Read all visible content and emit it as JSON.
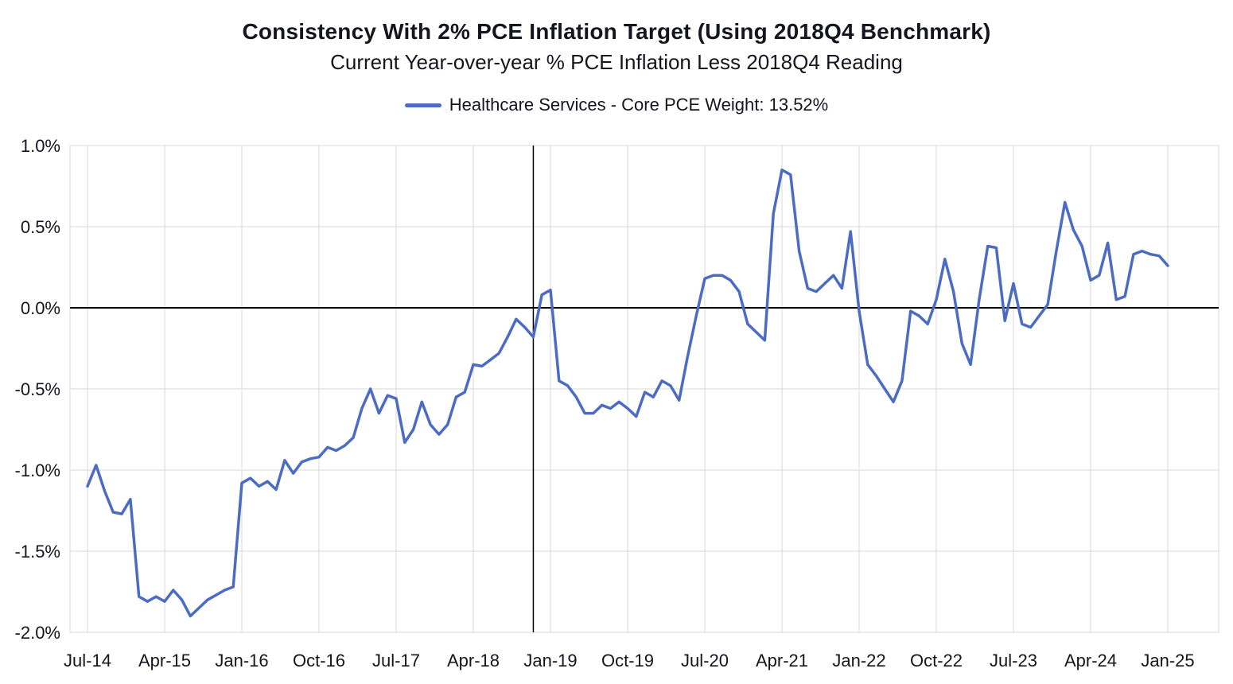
{
  "chart_data": {
    "type": "line",
    "title": "Consistency With 2% PCE Inflation Target (Using 2018Q4 Benchmark)",
    "subtitle": "Current Year-over-year % PCE Inflation Less 2018Q4 Reading",
    "unit": "percent",
    "grid": true,
    "grid_color": "#d9d9d9",
    "zero_line": true,
    "zero_line_color": "#000000",
    "benchmark_vline_month": "2018-11",
    "benchmark_vline_index": 52,
    "benchmark_vline_color": "#000000",
    "legend_position": "top-center",
    "x_start": "2014-07",
    "x_end": "2025-01",
    "x_frequency": "monthly",
    "x_tick_every_n_points": 9,
    "x_tick_labels": [
      "Jul-14",
      "Apr-15",
      "Jan-16",
      "Oct-16",
      "Jul-17",
      "Apr-18",
      "Jan-19",
      "Oct-19",
      "Jul-20",
      "Apr-21",
      "Jan-22",
      "Oct-22",
      "Jul-23",
      "Apr-24",
      "Jan-25"
    ],
    "ylim": [
      -2.0,
      1.0
    ],
    "y_ticks": [
      1.0,
      0.5,
      0.0,
      -0.5,
      -1.0,
      -1.5,
      -2.0
    ],
    "y_tick_labels": [
      "1.0%",
      "0.5%",
      "0.0%",
      "-0.5%",
      "-1.0%",
      "-1.5%",
      "-2.0%"
    ],
    "series": [
      {
        "name": "Healthcare Services - Core PCE Weight: 13.52%",
        "color": "#4c6cc4",
        "stroke_width": 3.5,
        "values": [
          -1.1,
          -0.97,
          -1.13,
          -1.26,
          -1.27,
          -1.18,
          -1.78,
          -1.81,
          -1.78,
          -1.81,
          -1.74,
          -1.8,
          -1.9,
          -1.85,
          -1.8,
          -1.77,
          -1.74,
          -1.72,
          -1.08,
          -1.05,
          -1.1,
          -1.07,
          -1.12,
          -0.94,
          -1.02,
          -0.95,
          -0.93,
          -0.92,
          -0.86,
          -0.88,
          -0.85,
          -0.8,
          -0.62,
          -0.5,
          -0.65,
          -0.54,
          -0.56,
          -0.83,
          -0.75,
          -0.58,
          -0.72,
          -0.78,
          -0.72,
          -0.55,
          -0.52,
          -0.35,
          -0.36,
          -0.32,
          -0.28,
          -0.18,
          -0.07,
          -0.12,
          -0.18,
          0.08,
          0.11,
          -0.45,
          -0.48,
          -0.55,
          -0.65,
          -0.65,
          -0.6,
          -0.62,
          -0.58,
          -0.62,
          -0.67,
          -0.52,
          -0.55,
          -0.45,
          -0.48,
          -0.57,
          -0.3,
          -0.05,
          0.18,
          0.2,
          0.2,
          0.17,
          0.1,
          -0.1,
          -0.15,
          -0.2,
          0.58,
          0.85,
          0.82,
          0.35,
          0.12,
          0.1,
          0.15,
          0.2,
          0.12,
          0.47,
          -0.02,
          -0.35,
          -0.42,
          -0.5,
          -0.58,
          -0.45,
          -0.02,
          -0.05,
          -0.1,
          0.05,
          0.3,
          0.1,
          -0.22,
          -0.35,
          0.05,
          0.38,
          0.37,
          -0.08,
          0.15,
          -0.1,
          -0.12,
          -0.05,
          0.02,
          0.35,
          0.65,
          0.48,
          0.38,
          0.17,
          0.2,
          0.4,
          0.05,
          0.07,
          0.33,
          0.35,
          0.33,
          0.32,
          0.26
        ]
      }
    ]
  }
}
